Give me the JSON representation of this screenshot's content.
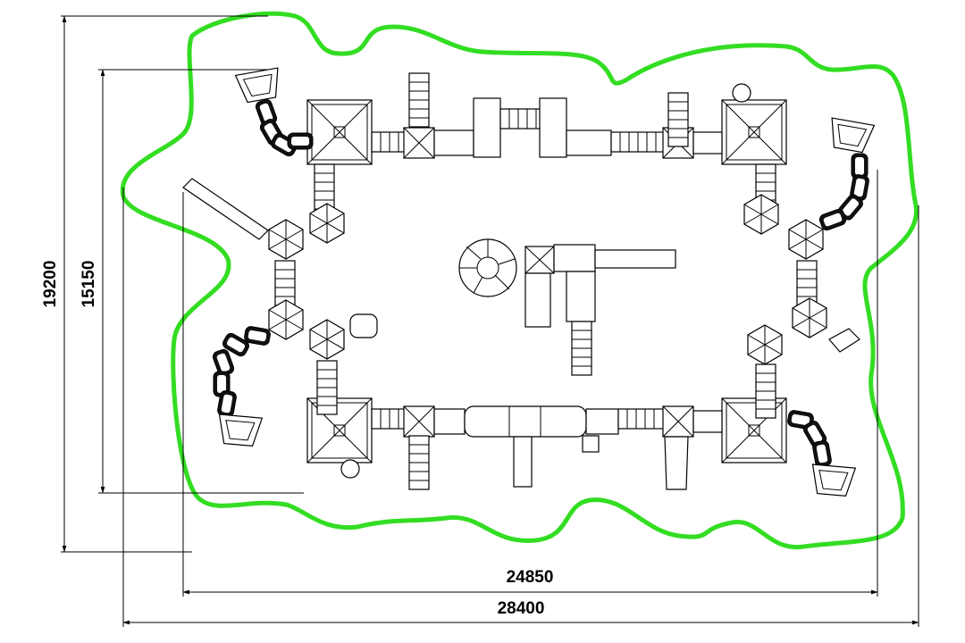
{
  "dimensions": {
    "outer_height": "19200",
    "inner_height": "15150",
    "inner_width": "24850",
    "outer_width": "28400"
  },
  "colors": {
    "safety_zone": "#33dd22",
    "lines": "#000000",
    "background": "#ffffff"
  }
}
